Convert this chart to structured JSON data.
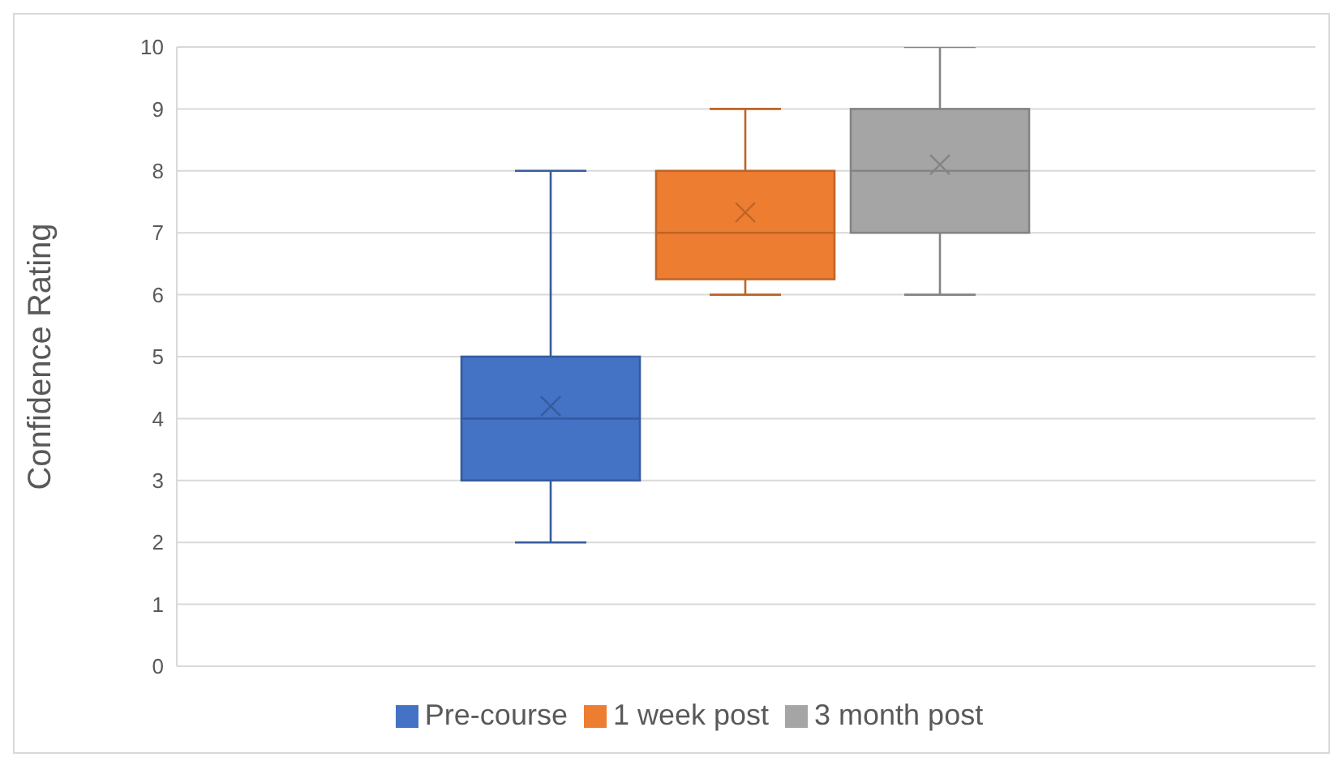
{
  "chart_data": {
    "type": "box",
    "ylabel": "Confidence Rating",
    "categories": [
      null
    ],
    "series": [
      {
        "name": "Pre-course",
        "color": "#4472c4",
        "boxes": [
          {
            "low": 2,
            "q1": 3,
            "median": 4,
            "q3": 5,
            "high": 8,
            "mean": 4.2
          }
        ]
      },
      {
        "name": "1 week post",
        "color": "#ed7d31",
        "boxes": [
          {
            "low": 6,
            "q1": 6.25,
            "median": 7,
            "q3": 8,
            "high": 9,
            "mean": 7.33
          }
        ]
      },
      {
        "name": "3 month post",
        "color": "#a5a5a5",
        "boxes": [
          {
            "low": 6,
            "q1": 7,
            "median": 8,
            "q3": 9,
            "high": 10,
            "mean": 8.1
          }
        ]
      }
    ],
    "ylim": [
      0,
      10
    ],
    "yticks": [
      0,
      1,
      2,
      3,
      4,
      5,
      6,
      7,
      8,
      9,
      10
    ],
    "grid": "y",
    "legend": "bottom",
    "marker": "cross",
    "tick_labels": "y"
  }
}
